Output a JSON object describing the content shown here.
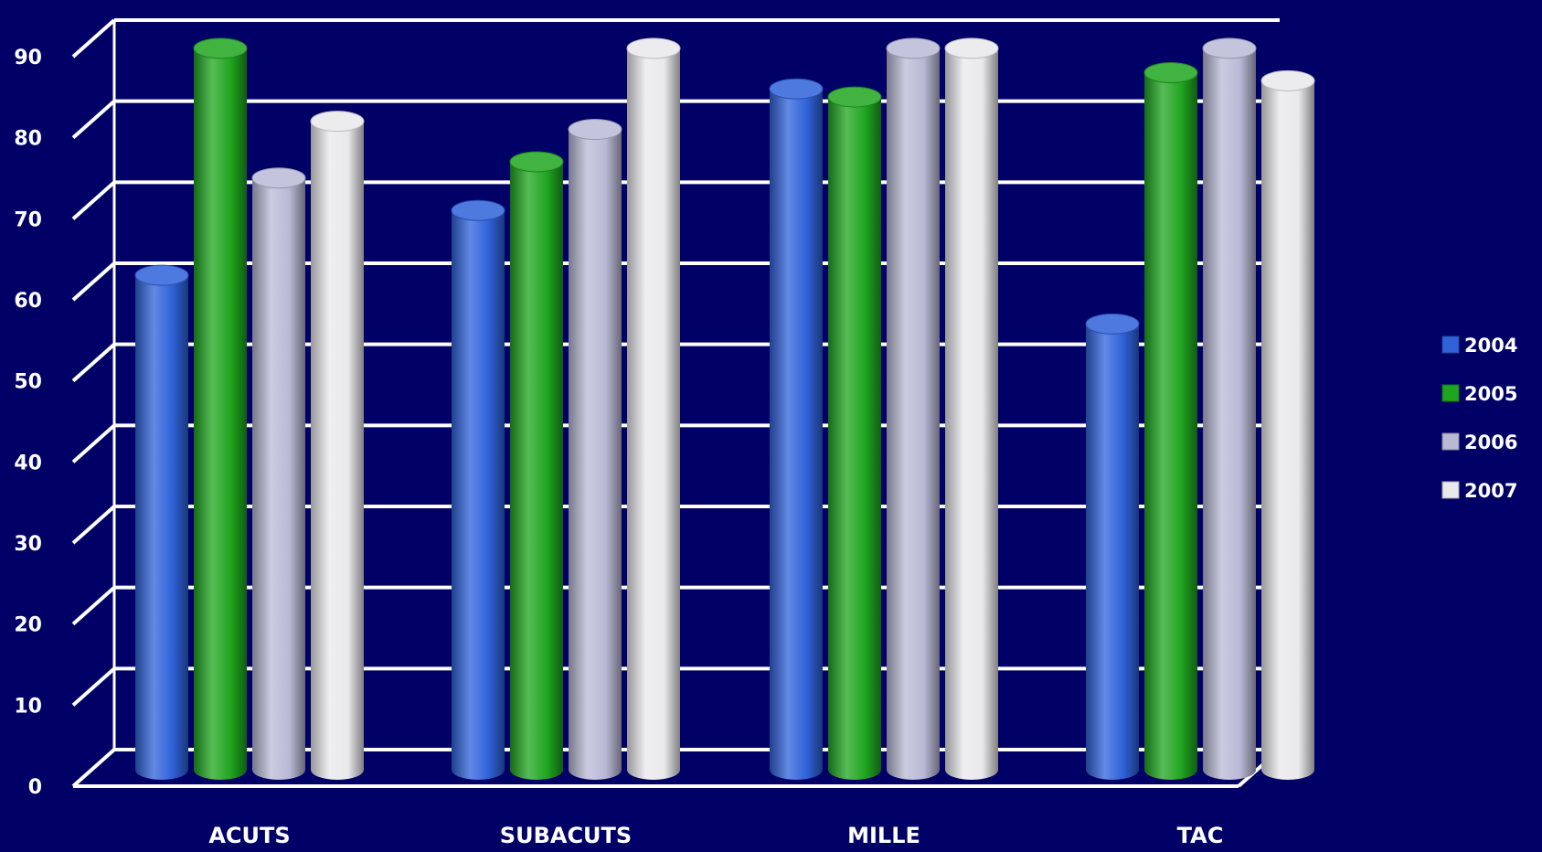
{
  "chart_data": {
    "type": "bar",
    "style": "3d-cylinder",
    "categories": [
      "ACUTS",
      "SUBACUTS",
      "MILLE",
      "TAC"
    ],
    "series": [
      {
        "name": "2004",
        "color": "#2f62d9",
        "values": [
          61,
          69,
          84,
          55
        ]
      },
      {
        "name": "2005",
        "color": "#1fa51f",
        "values": [
          89,
          75,
          83,
          86
        ]
      },
      {
        "name": "2006",
        "color": "#b9b9d6",
        "values": [
          73,
          79,
          89,
          89
        ]
      },
      {
        "name": "2007",
        "color": "#e9e9ec",
        "values": [
          80,
          89,
          89,
          85
        ]
      }
    ],
    "ylim": [
      0,
      90
    ],
    "yticks": [
      0,
      10,
      20,
      30,
      40,
      50,
      60,
      70,
      80,
      90
    ],
    "grid": true,
    "legend_position": "right",
    "background_color": "#000066",
    "grid_color": "#ffffff"
  }
}
